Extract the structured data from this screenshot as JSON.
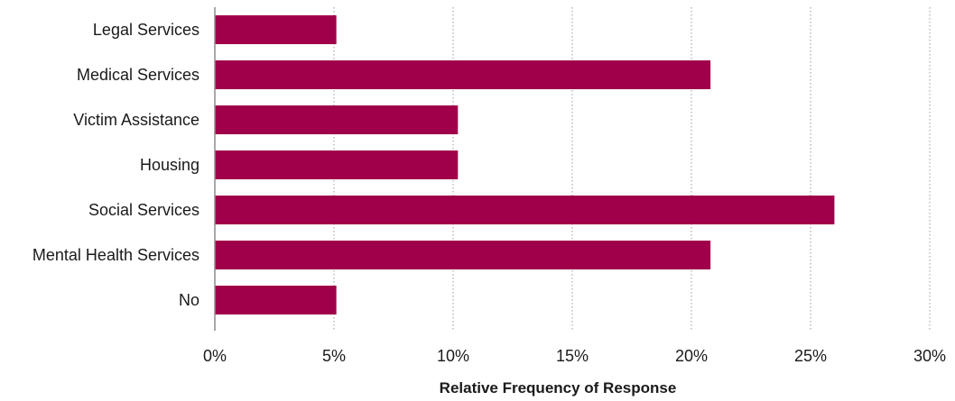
{
  "chart_data": {
    "type": "bar",
    "orientation": "horizontal",
    "categories": [
      "Legal Services",
      "Medical Services",
      "Victim Assistance",
      "Housing",
      "Social Services",
      "Mental Health Services",
      "No"
    ],
    "values": [
      5.1,
      20.8,
      10.2,
      10.2,
      26.0,
      20.8,
      5.1
    ],
    "xlabel": "Relative Frequency of Response",
    "ylabel": "",
    "xlim": [
      0,
      30
    ],
    "xticks": [
      0,
      5,
      10,
      15,
      20,
      25,
      30
    ],
    "tick_labels": [
      "0%",
      "5%",
      "10%",
      "15%",
      "20%",
      "25%",
      "30%"
    ],
    "grid": "vertical dotted",
    "bar_color": "#a0004a"
  }
}
